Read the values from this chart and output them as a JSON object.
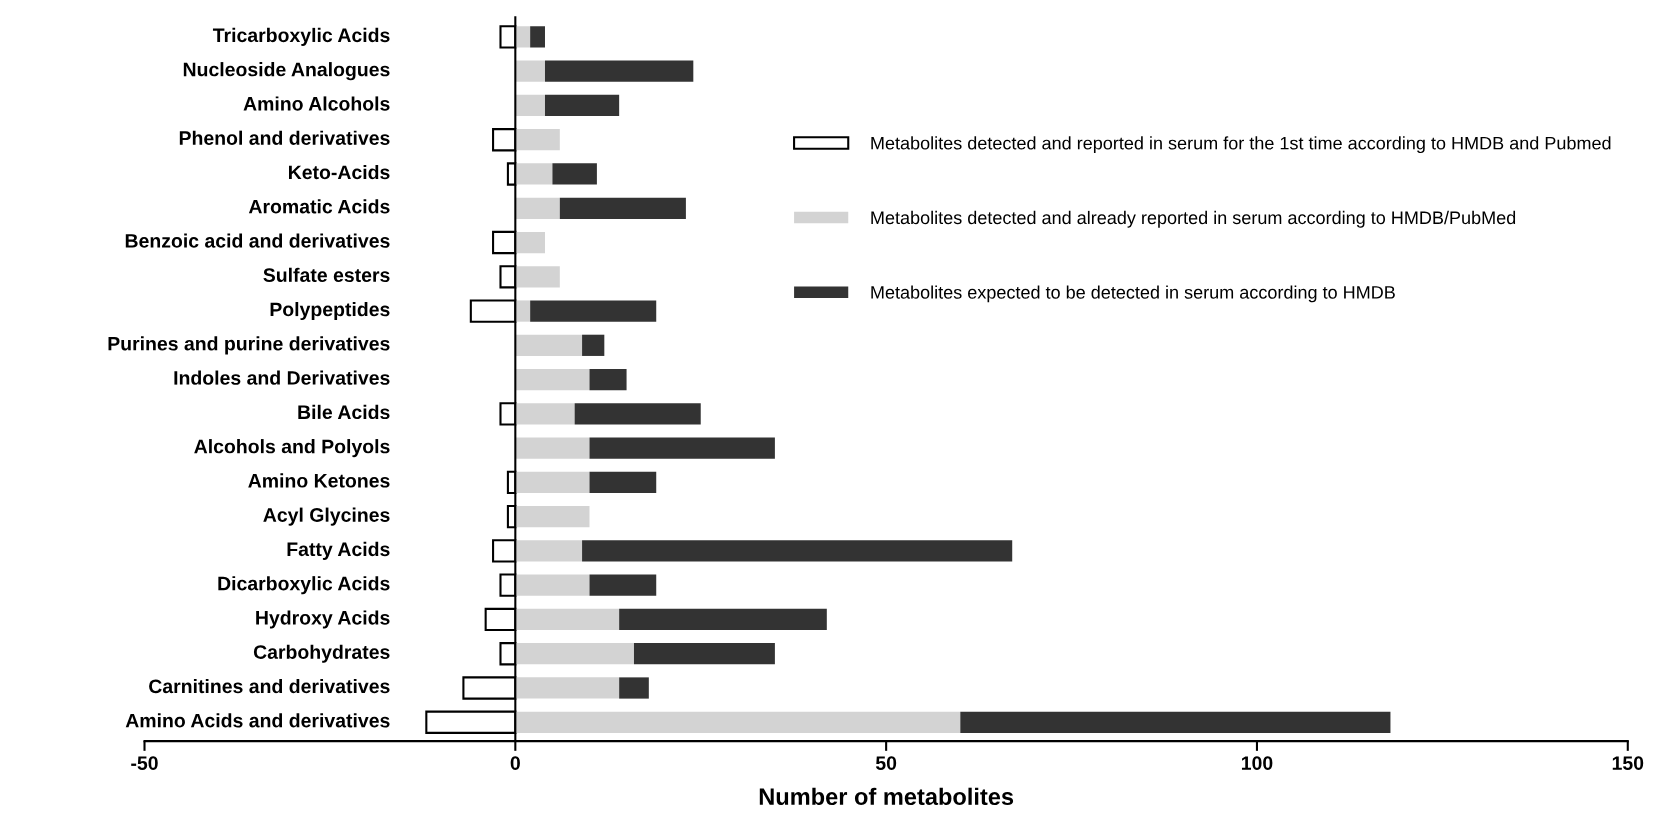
{
  "chart_data": {
    "type": "bar",
    "orientation": "horizontal",
    "stacked": true,
    "xlabel": "Number of metabolites",
    "categories": [
      "Tricarboxylic Acids",
      "Nucleoside Analogues",
      "Amino Alcohols",
      "Phenol and derivatives",
      "Keto-Acids",
      "Aromatic Acids",
      "Benzoic acid and derivatives",
      "Sulfate esters",
      "Polypeptides",
      "Purines and purine derivatives",
      "Indoles and Derivatives",
      "Bile Acids",
      "Alcohols and Polyols",
      "Amino Ketones",
      "Acyl Glycines",
      "Fatty Acids",
      "Dicarboxylic Acids",
      "Hydroxy Acids",
      "Carbohydrates",
      "Carnitines and derivatives",
      "Amino Acids and derivatives"
    ],
    "series": [
      {
        "name": "Metabolites detected and reported in serum for the 1st time according to HMDB and Pubmed",
        "color": "#ffffff",
        "values": [
          -2,
          0,
          0,
          -3,
          -1,
          0,
          -3,
          -2,
          -6,
          0,
          0,
          -2,
          0,
          -1,
          -1,
          -3,
          -2,
          -4,
          -2,
          -7,
          -12
        ]
      },
      {
        "name": "Metabolites detected and already reported in serum according to HMDB/PubMed",
        "color": "#d3d3d3",
        "values": [
          2,
          4,
          4,
          6,
          5,
          6,
          4,
          6,
          2,
          9,
          10,
          8,
          10,
          10,
          10,
          9,
          10,
          14,
          16,
          14,
          60
        ]
      },
      {
        "name": "Metabolites expected to be detected in serum according to HMDB",
        "color": "#333333",
        "values": [
          2,
          20,
          10,
          0,
          6,
          17,
          0,
          0,
          17,
          3,
          5,
          17,
          25,
          9,
          0,
          58,
          9,
          28,
          19,
          4,
          58
        ]
      }
    ],
    "xlim": [
      -50,
      150
    ],
    "xticks": [
      -50,
      0,
      50,
      100,
      150
    ],
    "ref_lines": [
      {
        "axis": "x",
        "value": 0,
        "color": "#000000"
      }
    ],
    "grid": false,
    "legend": "right"
  }
}
